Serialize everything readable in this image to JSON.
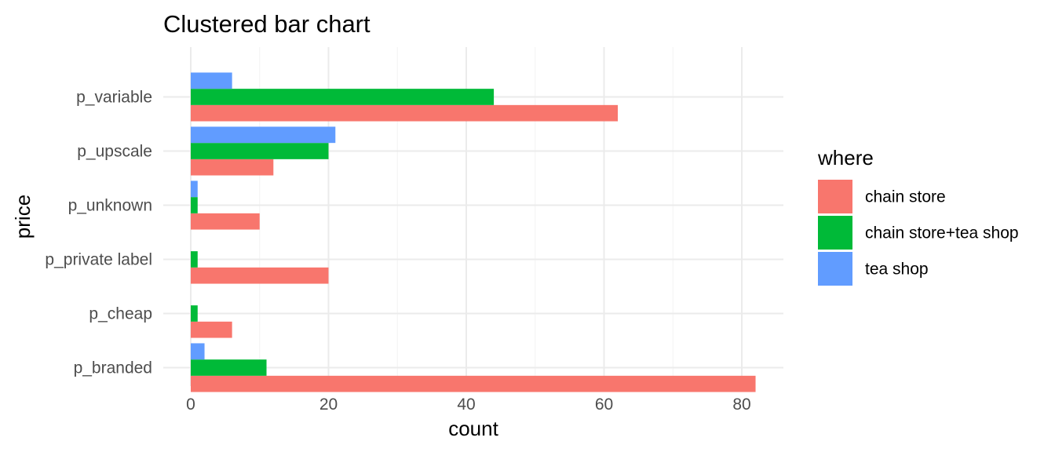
{
  "chart_data": {
    "type": "bar",
    "orientation": "horizontal",
    "title": "Clustered bar chart",
    "xlabel": "count",
    "ylabel": "price",
    "categories": [
      "p_branded",
      "p_cheap",
      "p_private label",
      "p_unknown",
      "p_upscale",
      "p_variable"
    ],
    "series": [
      {
        "name": "chain store",
        "color": "#F8766D",
        "values": [
          82,
          6,
          20,
          10,
          12,
          62
        ]
      },
      {
        "name": "chain store+tea shop",
        "color": "#00BA38",
        "values": [
          11,
          1,
          1,
          1,
          20,
          44
        ]
      },
      {
        "name": "tea shop",
        "color": "#619CFF",
        "values": [
          2,
          0,
          0,
          1,
          21,
          6
        ]
      }
    ],
    "xlim": [
      0,
      86
    ],
    "xticks": [
      0,
      20,
      40,
      60,
      80
    ],
    "grid": true,
    "legend": {
      "title": "where",
      "position": "right"
    }
  }
}
